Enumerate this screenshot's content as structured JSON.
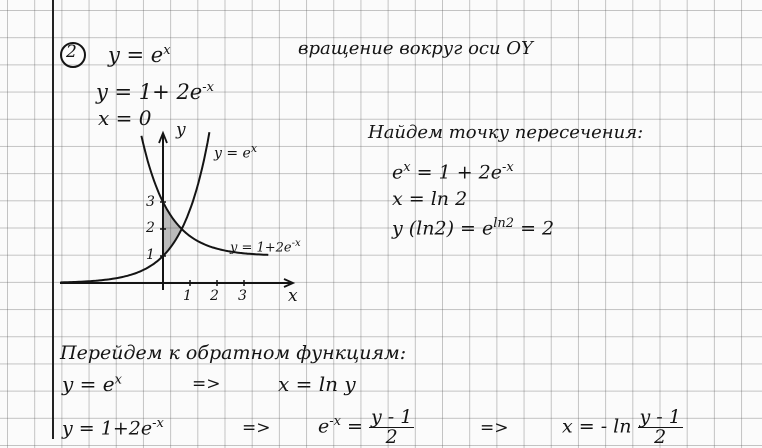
{
  "problem_number": "2",
  "given": {
    "eq1": {
      "lhs": "y = e",
      "exp": "x"
    },
    "eq2": {
      "lhs": "y = 1+ 2e",
      "exp": "-x"
    },
    "eq3": "x = 0",
    "task": "вращение вокруг оси OY"
  },
  "graph": {
    "x_axis_label": "x",
    "y_axis_label": "y",
    "x_ticks": [
      "1",
      "2",
      "3"
    ],
    "y_ticks": [
      "1",
      "2",
      "3"
    ],
    "curve1_label": {
      "base": "y = e",
      "exp": "x"
    },
    "curve2_label": {
      "base": "y = 1+2e",
      "exp": "-x"
    }
  },
  "intersection": {
    "heading": "Найдем точку пересечения:",
    "line1": {
      "a": "e",
      "a_exp": "x",
      "b": " = 1 + 2e",
      "b_exp": "-x"
    },
    "line2": "x = ln 2",
    "line3": {
      "a": "y (ln2) = e",
      "a_exp": "ln2",
      "b": " = 2"
    }
  },
  "inverse": {
    "heading": "Перейдем к обратном функциям:",
    "row1": {
      "lhs": "y = e",
      "lhs_exp": "x",
      "arrow": "=>",
      "rhs": "x = ln y"
    },
    "row2": {
      "lhs": "y = 1+2e",
      "lhs_exp": "-x",
      "arrow1": "=>",
      "mid": "e",
      "mid_exp": "-x",
      "mid_eq": " = ",
      "mid_num": "y - 1",
      "mid_den": "2",
      "arrow2": "=>",
      "rhs": "x = - ln ",
      "rhs_num": "y - 1",
      "rhs_den": "2"
    }
  },
  "colors": {
    "ink": "#141414",
    "grid": "#8a8a8a",
    "paper": "#fbfbfb"
  }
}
